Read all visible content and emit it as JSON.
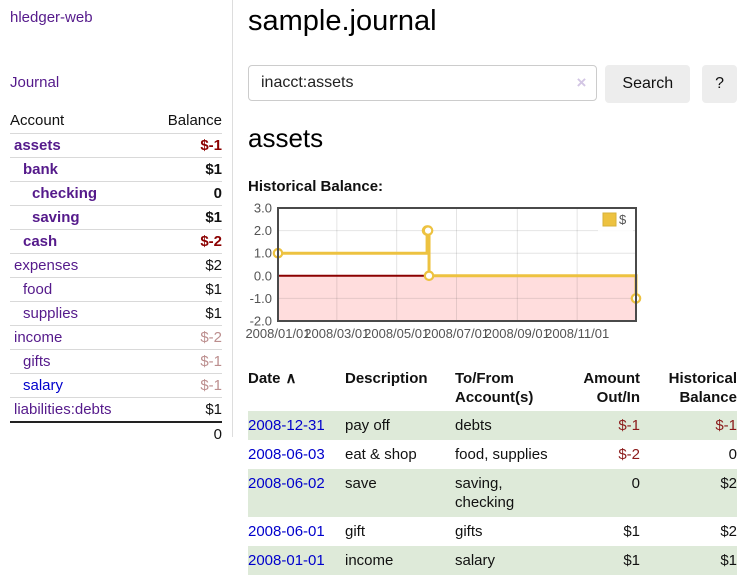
{
  "app": {
    "title": "hledger-web",
    "journal_nav": "Journal"
  },
  "sidebar": {
    "account_header": "Account",
    "balance_header": "Balance",
    "accounts": [
      {
        "name": "assets",
        "indent": 0,
        "bold": true,
        "balance": "$-1",
        "neg": true
      },
      {
        "name": "bank",
        "indent": 1,
        "bold": true,
        "balance": "$1",
        "neg": false
      },
      {
        "name": "checking",
        "indent": 2,
        "bold": true,
        "balance": "0",
        "neg": false
      },
      {
        "name": "saving",
        "indent": 2,
        "bold": true,
        "balance": "$1",
        "neg": false
      },
      {
        "name": "cash",
        "indent": 1,
        "bold": true,
        "balance": "$-2",
        "neg": true
      },
      {
        "name": "expenses",
        "indent": 0,
        "bold": false,
        "balance": "$2",
        "neg": false
      },
      {
        "name": "food",
        "indent": 1,
        "bold": false,
        "balance": "$1",
        "neg": false
      },
      {
        "name": "supplies",
        "indent": 1,
        "bold": false,
        "balance": "$1",
        "neg": false
      },
      {
        "name": "income",
        "indent": 0,
        "bold": false,
        "balance": "$-2",
        "neg": true
      },
      {
        "name": "gifts",
        "indent": 1,
        "bold": false,
        "balance": "$-1",
        "neg": true
      },
      {
        "name": "salary",
        "indent": 1,
        "bold": false,
        "balance": "$-1",
        "neg": true,
        "unvisited": true
      },
      {
        "name": "liabilities:debts",
        "indent": 0,
        "bold": false,
        "balance": "$1",
        "neg": false
      }
    ],
    "total": "0"
  },
  "main": {
    "title": "sample.journal",
    "search": {
      "value": "inacct:assets",
      "clear_label": "×",
      "button_label": "Search",
      "help_label": "?"
    },
    "account_heading": "assets",
    "chart_title": "Historical Balance:"
  },
  "chart_data": {
    "type": "line",
    "step": true,
    "legend": "$",
    "legend_position": "top-right",
    "ylim": [
      -2,
      3
    ],
    "y_ticks": [
      3,
      2,
      1,
      0,
      -1,
      -2
    ],
    "x_ticks": [
      "2008/01/01",
      "2008/03/01",
      "2008/05/01",
      "2008/07/01",
      "2008/09/01",
      "2008/11/01"
    ],
    "x_range": [
      "2008-01-01",
      "2008-12-31"
    ],
    "series": [
      {
        "name": "$",
        "color": "#edc240",
        "points": [
          [
            "2008-01-01",
            1
          ],
          [
            "2008-06-01",
            2
          ],
          [
            "2008-06-02",
            2
          ],
          [
            "2008-06-03",
            0
          ],
          [
            "2008-12-31",
            -1
          ]
        ]
      }
    ],
    "negative_region_color": "#ffdddd",
    "zero_line_color": "#8b0000",
    "grid": true
  },
  "register": {
    "headers": {
      "date": "Date",
      "sort_indicator": "∧",
      "description": "Description",
      "accounts": "To/From Account(s)",
      "amount": "Amount Out/In",
      "balance": "Historical Balance"
    },
    "rows": [
      {
        "date": "2008-12-31",
        "description": "pay off",
        "accounts": "debts",
        "amount": "$-1",
        "amount_neg": true,
        "balance": "$-1",
        "balance_neg": true,
        "shaded": true
      },
      {
        "date": "2008-06-03",
        "description": "eat & shop",
        "accounts": "food, supplies",
        "amount": "$-2",
        "amount_neg": true,
        "balance": "0",
        "balance_neg": false,
        "shaded": false
      },
      {
        "date": "2008-06-02",
        "description": "save",
        "accounts": "saving, checking",
        "amount": "0",
        "amount_neg": false,
        "balance": "$2",
        "balance_neg": false,
        "shaded": true
      },
      {
        "date": "2008-06-01",
        "description": "gift",
        "accounts": "gifts",
        "amount": "$1",
        "amount_neg": false,
        "balance": "$2",
        "balance_neg": false,
        "shaded": false
      },
      {
        "date": "2008-01-01",
        "description": "income",
        "accounts": "salary",
        "amount": "$1",
        "amount_neg": false,
        "balance": "$1",
        "balance_neg": false,
        "shaded": true
      }
    ]
  },
  "colors": {
    "link_visited": "#551a8b",
    "link": "#0000cc",
    "negative_bold": "#8b0000",
    "negative_muted": "#bc8e8e",
    "negative_table": "#8b1a1a",
    "row_shaded": "#deead9",
    "button_bg": "#ededed",
    "chart_line": "#edc240",
    "chart_axis_text": "#545454"
  }
}
